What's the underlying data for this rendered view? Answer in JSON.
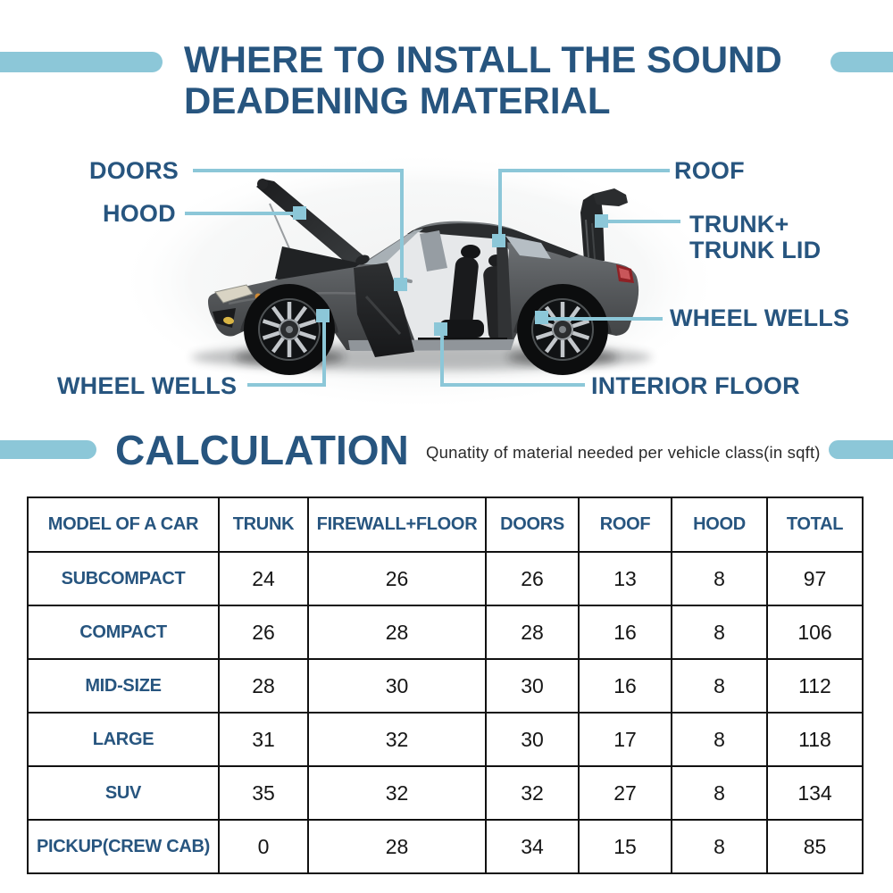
{
  "title": {
    "line1": "WHERE TO INSTALL THE SOUND",
    "line2": "DEADENING MATERIAL"
  },
  "callouts": {
    "doors": "DOORS",
    "hood": "HOOD",
    "roof": "ROOF",
    "trunk_line1": "TRUNK+",
    "trunk_line2": "TRUNK LID",
    "wheel_wells_right": "WHEEL WELLS",
    "wheel_wells_left": "WHEEL WELLS",
    "interior_floor": "INTERIOR FLOOR"
  },
  "calculation": {
    "heading": "CALCULATION",
    "subtitle": "Qunatity of material needed per vehicle class(in sqft)"
  },
  "table": {
    "headers": [
      "MODEL OF A CAR",
      "TRUNK",
      "FIREWALL+FLOOR",
      "DOORS",
      "ROOF",
      "HOOD",
      "TOTAL"
    ],
    "rows": [
      {
        "model": "SUBCOMPACT",
        "values": [
          "24",
          "26",
          "26",
          "13",
          "8",
          "97"
        ]
      },
      {
        "model": "COMPACT",
        "values": [
          "26",
          "28",
          "28",
          "16",
          "8",
          "106"
        ]
      },
      {
        "model": "MID-SIZE",
        "values": [
          "28",
          "30",
          "30",
          "16",
          "8",
          "112"
        ]
      },
      {
        "model": "LARGE",
        "values": [
          "31",
          "32",
          "30",
          "17",
          "8",
          "118"
        ]
      },
      {
        "model": "SUV",
        "values": [
          "35",
          "32",
          "32",
          "27",
          "8",
          "134"
        ]
      },
      {
        "model": "PICKUP(CREW CAB)",
        "values": [
          "0",
          "28",
          "34",
          "15",
          "8",
          "85"
        ]
      }
    ]
  },
  "colors": {
    "dark_blue": "#27557f",
    "light_blue": "#8cc7d8",
    "table_border": "#111111"
  }
}
